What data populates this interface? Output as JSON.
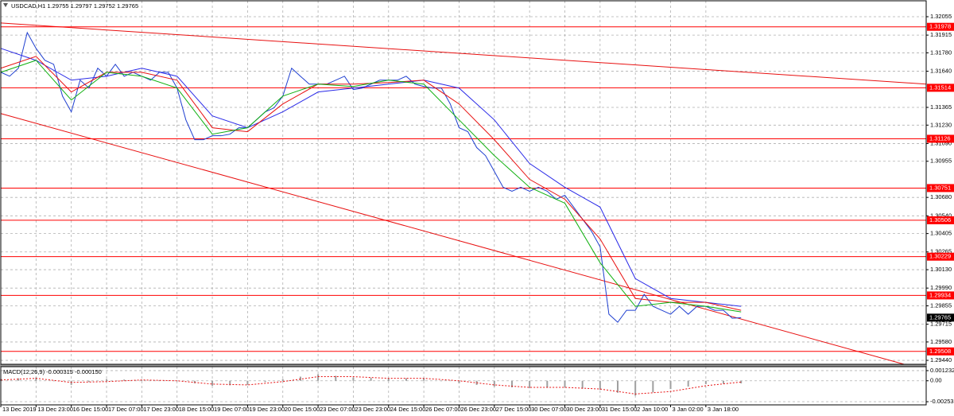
{
  "chart_data": [
    {
      "type": "line",
      "title": "USDCAD,H1  1.29755 1.29797 1.29752 1.29765",
      "xlim": [
        0,
        420
      ],
      "ylim": [
        1.2941,
        1.32176
      ],
      "yticks": [
        1.32055,
        1.31915,
        {
          "value": 1.3178,
          "label": "1.31780"
        },
        {
          "value": 1.3164,
          "label": "1.31640"
        },
        1.31365,
        {
          "value": 1.3123,
          "label": "1.31230"
        },
        {
          "value": 1.3109,
          "label": "1.31090"
        },
        1.30955,
        {
          "value": 1.3068,
          "label": "1.30680"
        },
        {
          "value": 1.3054,
          "label": "1.30540"
        },
        1.30405,
        1.30265,
        {
          "value": 1.3013,
          "label": "1.30130"
        },
        {
          "value": 1.2999,
          "label": "1.29990"
        },
        1.29855,
        1.29715,
        {
          "value": 1.2958,
          "label": "1.29580"
        },
        {
          "value": 1.2944,
          "label": "1.29440"
        }
      ],
      "grid": true,
      "series": [
        {
          "color": "#1f3fd0",
          "x": [
            0,
            4,
            8,
            12,
            16,
            20,
            24,
            28,
            32,
            36,
            40,
            44,
            48,
            52,
            56,
            60,
            64,
            68,
            72,
            76,
            80,
            84,
            88,
            92,
            96,
            100,
            104,
            108,
            112,
            116,
            120,
            124,
            128,
            132,
            136,
            140,
            144,
            148,
            152,
            156,
            160,
            164,
            168,
            172,
            176,
            180,
            184,
            188,
            192,
            196,
            200,
            204,
            208,
            212,
            216,
            220,
            224,
            228,
            232,
            236,
            240,
            244,
            248,
            252,
            256,
            260,
            264,
            268,
            272,
            276,
            280,
            284,
            288,
            292,
            296,
            300,
            304,
            308,
            312,
            316,
            320,
            324,
            328,
            332,
            336
          ],
          "values": [
            1.31632,
            1.31602,
            1.31663,
            1.31934,
            1.31814,
            1.31723,
            1.31693,
            1.31451,
            1.31331,
            1.31572,
            1.31512,
            1.31663,
            1.31602,
            1.31693,
            1.31602,
            1.31632,
            1.31602,
            1.31572,
            1.31632,
            1.31632,
            1.31512,
            1.3127,
            1.31119,
            1.31119,
            1.31149,
            1.31149,
            1.31161,
            1.3121,
            1.3121,
            1.3127,
            1.31331,
            1.31361,
            1.31451,
            1.31663,
            1.31602,
            1.31542,
            1.31542,
            1.31542,
            1.31572,
            1.31602,
            1.315,
            1.31512,
            1.31542,
            1.31572,
            1.31572,
            1.31572,
            1.31602,
            1.31542,
            1.31524,
            1.31512,
            1.31512,
            1.31391,
            1.3121,
            1.3118,
            1.31059,
            1.30998,
            1.30878,
            1.30757,
            1.30727,
            1.30757,
            1.30727,
            1.30757,
            1.30727,
            1.30666,
            1.30696,
            1.30606,
            1.30515,
            1.30425,
            1.30304,
            1.29791,
            1.2973,
            1.29821,
            1.29821,
            1.29942,
            1.29851,
            1.29821,
            1.29791,
            1.29851,
            1.29791,
            1.29851,
            1.29851,
            1.29821,
            1.29821,
            1.2976,
            1.29765
          ]
        },
        {
          "color": "#2a2ae8",
          "x": [
            0,
            16,
            32,
            48,
            64,
            80,
            96,
            112,
            128,
            144,
            160,
            176,
            192,
            208,
            224,
            240,
            256,
            272,
            288,
            304,
            320,
            336
          ],
          "values": [
            1.31814,
            1.31723,
            1.31572,
            1.31602,
            1.31663,
            1.31602,
            1.313,
            1.3121,
            1.31331,
            1.31482,
            1.31512,
            1.31542,
            1.31572,
            1.31512,
            1.3127,
            1.30938,
            1.30757,
            1.30606,
            1.30062,
            1.29911,
            1.29881,
            1.29851
          ]
        },
        {
          "color": "#e81010",
          "x": [
            0,
            16,
            32,
            48,
            64,
            80,
            96,
            112,
            128,
            144,
            160,
            176,
            192,
            208,
            224,
            240,
            256,
            272,
            288,
            304,
            320,
            336
          ],
          "values": [
            1.31663,
            1.31753,
            1.31482,
            1.31632,
            1.31632,
            1.31572,
            1.3121,
            1.3118,
            1.31391,
            1.31542,
            1.31542,
            1.31554,
            1.31572,
            1.31391,
            1.31119,
            1.30817,
            1.30666,
            1.30364,
            1.29911,
            1.29881,
            1.29881,
            1.29821
          ]
        },
        {
          "color": "#10b010",
          "x": [
            0,
            16,
            32,
            48,
            64,
            80,
            96,
            112,
            128,
            144,
            160,
            176,
            192,
            208,
            224,
            240,
            256,
            272,
            288,
            304,
            320,
            336
          ],
          "values": [
            1.31632,
            1.31723,
            1.31421,
            1.31632,
            1.31602,
            1.31512,
            1.31161,
            1.3121,
            1.31451,
            1.31542,
            1.31524,
            1.31572,
            1.31542,
            1.3127,
            1.30998,
            1.30757,
            1.30636,
            1.30183,
            1.29851,
            1.29881,
            1.29851,
            1.29809
          ]
        }
      ],
      "trendlines": [
        {
          "color": "#e81010",
          "x": [
            0,
            420
          ],
          "values": [
            1.32007,
            1.31542
          ]
        },
        {
          "color": "#e81010",
          "x": [
            0,
            410
          ],
          "values": [
            1.31318,
            1.2941
          ]
        }
      ],
      "levels": [
        1.31978,
        1.31514,
        1.31126,
        1.30751,
        1.30506,
        1.30229,
        1.29934,
        1.29508
      ],
      "level_color": "#ff0000",
      "last_price": 1.29765
    },
    {
      "type": "macd",
      "title": "MACD(12,26,9) -0.000315 -0.000150",
      "xlim": [
        0,
        420
      ],
      "ylim": [
        -0.00292,
        0.00171
      ],
      "yticks": [
        0.001232,
        {
          "value": 0,
          "label": "0.00"
        },
        -0.002537
      ],
      "xticks": [
        {
          "value": 0,
          "label": "13 Dec 2019"
        },
        {
          "value": 16,
          "label": "13 Dec 23:00"
        },
        {
          "value": 32,
          "label": "16 Dec 15:00"
        },
        {
          "value": 48,
          "label": "17 Dec 07:00"
        },
        {
          "value": 64,
          "label": "17 Dec 23:00"
        },
        {
          "value": 80,
          "label": "18 Dec 15:00"
        },
        {
          "value": 96,
          "label": "19 Dec 07:00"
        },
        {
          "value": 112,
          "label": "19 Dec 23:00"
        },
        {
          "value": 128,
          "label": "20 Dec 15:00"
        },
        {
          "value": 144,
          "label": "23 Dec 07:00"
        },
        {
          "value": 160,
          "label": "23 Dec 23:00"
        },
        {
          "value": 176,
          "label": "24 Dec 15:00"
        },
        {
          "value": 192,
          "label": "26 Dec 07:00"
        },
        {
          "value": 208,
          "label": "26 Dec 23:00"
        },
        {
          "value": 224,
          "label": "27 Dec 15:00"
        },
        {
          "value": 240,
          "label": "30 Dec 07:00"
        },
        {
          "value": 256,
          "label": "30 Dec 23:00"
        },
        {
          "value": 272,
          "label": "31 Dec 15:00"
        },
        {
          "value": 288,
          "label": "2 Jan 10:00"
        },
        {
          "value": 304,
          "label": "3 Jan 02:00"
        },
        {
          "value": 320,
          "label": "3 Jan 18:00"
        }
      ],
      "grid": true,
      "series": [
        {
          "style": "histogram",
          "color": "#a0a0a0",
          "x": [
            0,
            8,
            16,
            24,
            32,
            40,
            48,
            56,
            64,
            72,
            80,
            88,
            96,
            104,
            112,
            120,
            128,
            136,
            144,
            152,
            160,
            168,
            176,
            184,
            192,
            200,
            208,
            216,
            224,
            232,
            240,
            248,
            256,
            264,
            272,
            280,
            288,
            296,
            304,
            312,
            320,
            328,
            336
          ],
          "values": [
            0.0002,
            0.0003,
            0.0004,
            -5e-05,
            -0.0005,
            -0.00015,
            0.0002,
            0.00015,
            0.0001,
            5e-05,
            0.0,
            -0.0003,
            -0.0006,
            -0.00055,
            -0.0005,
            -0.00015,
            0.0002,
            0.0005,
            0.0008,
            0.0006,
            0.0004,
            0.00035,
            0.0003,
            0.0003,
            0.0003,
            0.0,
            -0.0003,
            -0.0005,
            -0.0007,
            -0.0008,
            -0.0009,
            -0.00085,
            -0.0008,
            -0.00095,
            -0.0011,
            -0.00145,
            -0.0018,
            -0.0014,
            -0.001,
            -0.0007,
            -0.0004,
            -0.00035,
            -0.000315
          ]
        },
        {
          "style": "dotted",
          "color": "#e81010",
          "x": [
            0,
            16,
            32,
            48,
            64,
            80,
            96,
            112,
            128,
            144,
            160,
            176,
            192,
            208,
            224,
            240,
            256,
            272,
            288,
            304,
            320,
            336
          ],
          "values": [
            0.0001,
            0.0003,
            -0.0002,
            -0.0001,
            0.0001,
            0.0,
            -0.0004,
            -0.0005,
            -0.0001,
            0.0005,
            0.0005,
            0.0003,
            0.0003,
            0.0,
            -0.0005,
            -0.0008,
            -0.0008,
            -0.001,
            -0.0016,
            -0.0013,
            -0.0006,
            -0.00015
          ]
        }
      ]
    }
  ]
}
